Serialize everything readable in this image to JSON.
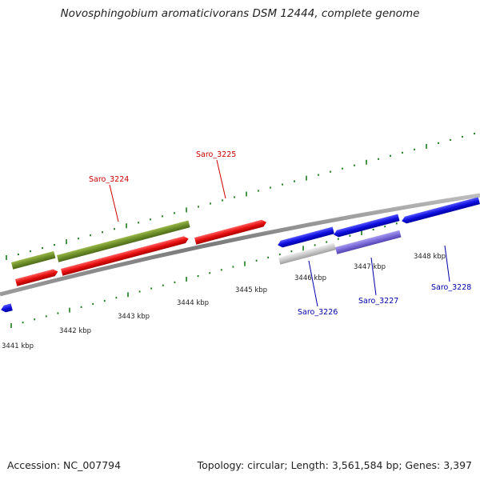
{
  "title": "Novosphingobium aromaticivorans DSM 12444, complete genome",
  "footer": {
    "accession": "Accession: NC_007794",
    "topology": "Topology: circular; Length: 3,561,584 bp; Genes: 3,397"
  },
  "colors": {
    "backbone": "#8a8a8a",
    "tick": "#1a7a1a",
    "gene_green": "#6f8f2a",
    "gene_red": "#e31010",
    "gene_blue": "#1010e0",
    "gene_grey": "#c8c8c8",
    "gene_purple": "#7b6bd8",
    "label_red": "#cc0000",
    "label_blue": "#0000aa"
  },
  "ruler": {
    "unit": "kbp",
    "labels": [
      "3441 kbp",
      "3442 kbp",
      "3443 kbp",
      "3444 kbp",
      "3445 kbp",
      "3446 kbp",
      "3447 kbp",
      "3448 kbp"
    ]
  },
  "gene_labels": [
    {
      "name": "Saro_3224",
      "color": "#cc0000"
    },
    {
      "name": "Saro_3225",
      "color": "#cc0000"
    },
    {
      "name": "Saro_3226",
      "color": "#0000aa"
    },
    {
      "name": "Saro_3227",
      "color": "#0000aa"
    },
    {
      "name": "Saro_3228",
      "color": "#0000aa"
    }
  ]
}
